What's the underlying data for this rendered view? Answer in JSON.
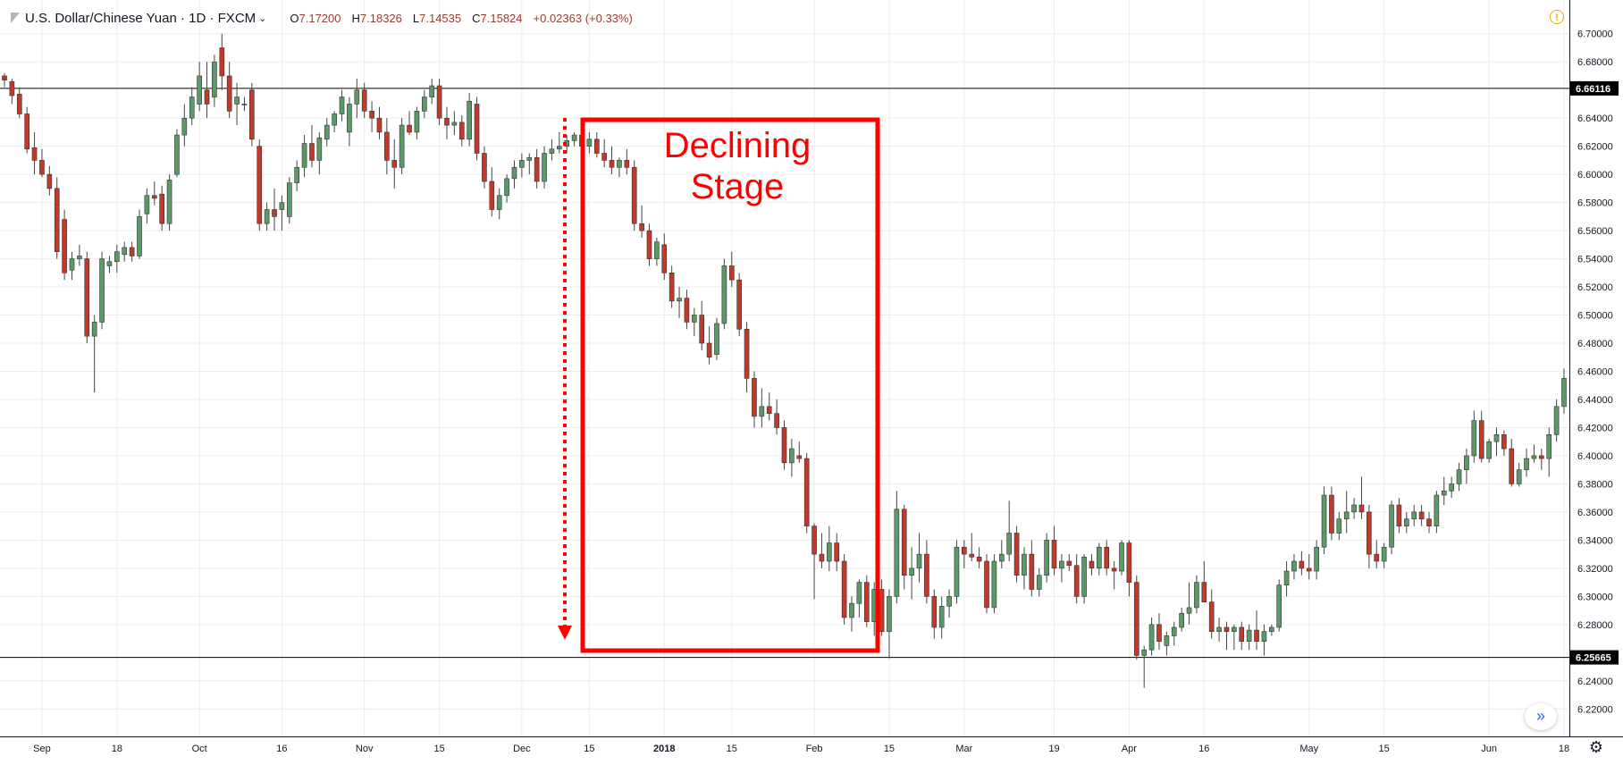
{
  "header": {
    "title": "U.S. Dollar/Chinese Yuan · 1D · FXCM",
    "ohlc": [
      {
        "label": "O",
        "value": "7.17200"
      },
      {
        "label": "H",
        "value": "7.18326"
      },
      {
        "label": "L",
        "value": "7.14535"
      },
      {
        "label": "C",
        "value": "7.15824"
      }
    ],
    "change": "+0.02363 (+0.33%)"
  },
  "annotation": {
    "text_line1": "Declining",
    "text_line2": "Stage"
  },
  "colors": {
    "up": "#5b9a68",
    "down": "#c0392b",
    "annotation": "#ff0000",
    "grid": "#ececec"
  },
  "icons": {
    "alert": "alert-circle-icon",
    "settings": "gear-icon",
    "scroll": "double-chevron-right-icon"
  },
  "chart_data": {
    "type": "candlestick",
    "ylim": [
      6.21,
      6.71
    ],
    "y_ticks": [
      "6.70000",
      "6.68000",
      "6.64000",
      "6.62000",
      "6.60000",
      "6.58000",
      "6.56000",
      "6.54000",
      "6.52000",
      "6.50000",
      "6.48000",
      "6.46000",
      "6.44000",
      "6.42000",
      "6.40000",
      "6.38000",
      "6.36000",
      "6.34000",
      "6.32000",
      "6.30000",
      "6.28000",
      "6.24000",
      "6.22000"
    ],
    "x_ticks": [
      "Sep",
      "18",
      "Oct",
      "16",
      "Nov",
      "15",
      "Dec",
      "15",
      "2018",
      "15",
      "Feb",
      "15",
      "Mar",
      "19",
      "Apr",
      "16",
      "May",
      "15",
      "Jun",
      "18"
    ],
    "horizontal_lines": [
      {
        "value": 6.66116,
        "label": "6.66116"
      },
      {
        "value": 6.25665,
        "label": "6.25665"
      }
    ],
    "candles": [
      [
        6.67,
        6.672,
        6.662,
        6.667
      ],
      [
        6.666,
        6.668,
        6.65,
        6.656
      ],
      [
        6.657,
        6.662,
        6.64,
        6.643
      ],
      [
        6.643,
        6.648,
        6.615,
        6.618
      ],
      [
        6.619,
        6.63,
        6.6,
        6.61
      ],
      [
        6.61,
        6.618,
        6.598,
        6.6
      ],
      [
        6.6,
        6.606,
        6.585,
        6.59
      ],
      [
        6.59,
        6.598,
        6.54,
        6.545
      ],
      [
        6.568,
        6.575,
        6.525,
        6.53
      ],
      [
        6.532,
        6.545,
        6.525,
        6.54
      ],
      [
        6.54,
        6.55,
        6.535,
        6.542
      ],
      [
        6.54,
        6.545,
        6.48,
        6.485
      ],
      [
        6.485,
        6.5,
        6.445,
        6.495
      ],
      [
        6.495,
        6.545,
        6.49,
        6.54
      ],
      [
        6.535,
        6.542,
        6.53,
        6.538
      ],
      [
        6.538,
        6.55,
        6.53,
        6.545
      ],
      [
        6.543,
        6.552,
        6.538,
        6.548
      ],
      [
        6.548,
        6.552,
        6.538,
        6.542
      ],
      [
        6.542,
        6.575,
        6.54,
        6.57
      ],
      [
        6.572,
        6.59,
        6.565,
        6.585
      ],
      [
        6.585,
        6.595,
        6.578,
        6.583
      ],
      [
        6.586,
        6.592,
        6.56,
        6.565
      ],
      [
        6.565,
        6.6,
        6.56,
        6.596
      ],
      [
        6.6,
        6.632,
        6.598,
        6.628
      ],
      [
        6.628,
        6.65,
        6.62,
        6.64
      ],
      [
        6.64,
        6.662,
        6.635,
        6.655
      ],
      [
        6.65,
        6.68,
        6.645,
        6.67
      ],
      [
        6.66,
        6.68,
        6.64,
        6.65
      ],
      [
        6.655,
        6.685,
        6.648,
        6.68
      ],
      [
        6.69,
        6.7,
        6.66,
        6.67
      ],
      [
        6.67,
        6.68,
        6.64,
        6.645
      ],
      [
        6.65,
        6.665,
        6.635,
        6.655
      ],
      [
        6.65,
        6.655,
        6.645,
        6.65
      ],
      [
        6.66,
        6.665,
        6.62,
        6.625
      ],
      [
        6.62,
        6.625,
        6.56,
        6.565
      ],
      [
        6.565,
        6.58,
        6.56,
        6.575
      ],
      [
        6.575,
        6.59,
        6.56,
        6.57
      ],
      [
        6.575,
        6.585,
        6.56,
        6.58
      ],
      [
        6.57,
        6.598,
        6.565,
        6.594
      ],
      [
        6.594,
        6.61,
        6.588,
        6.605
      ],
      [
        6.605,
        6.628,
        6.598,
        6.622
      ],
      [
        6.622,
        6.635,
        6.605,
        6.61
      ],
      [
        6.61,
        6.63,
        6.6,
        6.626
      ],
      [
        6.625,
        6.64,
        6.62,
        6.635
      ],
      [
        6.635,
        6.645,
        6.63,
        6.643
      ],
      [
        6.643,
        6.66,
        6.638,
        6.655
      ],
      [
        6.63,
        6.655,
        6.62,
        6.65
      ],
      [
        6.65,
        6.668,
        6.64,
        6.66
      ],
      [
        6.66,
        6.665,
        6.64,
        6.645
      ],
      [
        6.645,
        6.652,
        6.63,
        6.64
      ],
      [
        6.64,
        6.648,
        6.625,
        6.63
      ],
      [
        6.63,
        6.64,
        6.6,
        6.61
      ],
      [
        6.61,
        6.625,
        6.59,
        6.605
      ],
      [
        6.605,
        6.64,
        6.6,
        6.635
      ],
      [
        6.635,
        6.645,
        6.628,
        6.63
      ],
      [
        6.63,
        6.648,
        6.625,
        6.645
      ],
      [
        6.645,
        6.66,
        6.64,
        6.655
      ],
      [
        6.655,
        6.668,
        6.65,
        6.663
      ],
      [
        6.663,
        6.668,
        6.635,
        6.64
      ],
      [
        6.64,
        6.648,
        6.625,
        6.635
      ],
      [
        6.635,
        6.645,
        6.628,
        6.637
      ],
      [
        6.637,
        6.642,
        6.62,
        6.625
      ],
      [
        6.625,
        6.658,
        6.62,
        6.652
      ],
      [
        6.65,
        6.655,
        6.61,
        6.615
      ],
      [
        6.615,
        6.62,
        6.59,
        6.595
      ],
      [
        6.595,
        6.605,
        6.57,
        6.575
      ],
      [
        6.575,
        6.59,
        6.568,
        6.585
      ],
      [
        6.585,
        6.6,
        6.58,
        6.597
      ],
      [
        6.597,
        6.61,
        6.59,
        6.605
      ],
      [
        6.605,
        6.615,
        6.598,
        6.61
      ],
      [
        6.61,
        6.615,
        6.6,
        6.612
      ],
      [
        6.612,
        6.618,
        6.59,
        6.595
      ],
      [
        6.595,
        6.62,
        6.59,
        6.615
      ],
      [
        6.615,
        6.625,
        6.61,
        6.618
      ],
      [
        6.618,
        6.63,
        6.615,
        6.62
      ],
      [
        6.62,
        6.628,
        6.615,
        6.624
      ],
      [
        6.624,
        6.63,
        6.62,
        6.628
      ],
      [
        6.628,
        6.636,
        6.615,
        6.62
      ],
      [
        6.62,
        6.63,
        6.615,
        6.625
      ],
      [
        6.625,
        6.63,
        6.612,
        6.615
      ],
      [
        6.615,
        6.625,
        6.605,
        6.61
      ],
      [
        6.61,
        6.62,
        6.6,
        6.605
      ],
      [
        6.605,
        6.612,
        6.598,
        6.61
      ],
      [
        6.61,
        6.618,
        6.6,
        6.605
      ],
      [
        6.605,
        6.61,
        6.56,
        6.565
      ],
      [
        6.565,
        6.578,
        6.555,
        6.56
      ],
      [
        6.56,
        6.565,
        6.535,
        6.54
      ],
      [
        6.54,
        6.555,
        6.535,
        6.552
      ],
      [
        6.55,
        6.558,
        6.525,
        6.53
      ],
      [
        6.53,
        6.535,
        6.505,
        6.51
      ],
      [
        6.51,
        6.52,
        6.498,
        6.512
      ],
      [
        6.512,
        6.518,
        6.49,
        6.495
      ],
      [
        6.495,
        6.505,
        6.485,
        6.5
      ],
      [
        6.5,
        6.51,
        6.475,
        6.48
      ],
      [
        6.48,
        6.492,
        6.465,
        6.47
      ],
      [
        6.472,
        6.498,
        6.468,
        6.494
      ],
      [
        6.494,
        6.54,
        6.49,
        6.535
      ],
      [
        6.535,
        6.545,
        6.52,
        6.525
      ],
      [
        6.525,
        6.53,
        6.485,
        6.49
      ],
      [
        6.49,
        6.495,
        6.445,
        6.455
      ],
      [
        6.455,
        6.46,
        6.42,
        6.428
      ],
      [
        6.428,
        6.448,
        6.42,
        6.435
      ],
      [
        6.435,
        6.445,
        6.425,
        6.43
      ],
      [
        6.43,
        6.44,
        6.415,
        6.42
      ],
      [
        6.42,
        6.425,
        6.39,
        6.395
      ],
      [
        6.395,
        6.412,
        6.385,
        6.405
      ],
      [
        6.4,
        6.41,
        6.395,
        6.398
      ],
      [
        6.398,
        6.402,
        6.345,
        6.35
      ],
      [
        6.35,
        6.352,
        6.298,
        6.33
      ],
      [
        6.33,
        6.345,
        6.32,
        6.325
      ],
      [
        6.325,
        6.35,
        6.318,
        6.338
      ],
      [
        6.338,
        6.345,
        6.318,
        6.325
      ],
      [
        6.325,
        6.33,
        6.28,
        6.285
      ],
      [
        6.285,
        6.3,
        6.275,
        6.295
      ],
      [
        6.295,
        6.312,
        6.285,
        6.31
      ],
      [
        6.31,
        6.315,
        6.278,
        6.282
      ],
      [
        6.282,
        6.31,
        6.272,
        6.305
      ],
      [
        6.305,
        6.312,
        6.272,
        6.275
      ],
      [
        6.275,
        6.305,
        6.256,
        6.3
      ],
      [
        6.3,
        6.375,
        6.295,
        6.362
      ],
      [
        6.362,
        6.365,
        6.305,
        6.315
      ],
      [
        6.315,
        6.335,
        6.298,
        6.32
      ],
      [
        6.32,
        6.345,
        6.31,
        6.33
      ],
      [
        6.33,
        6.34,
        6.295,
        6.3
      ],
      [
        6.3,
        6.305,
        6.27,
        6.278
      ],
      [
        6.278,
        6.3,
        6.27,
        6.293
      ],
      [
        6.293,
        6.305,
        6.285,
        6.3
      ],
      [
        6.3,
        6.34,
        6.295,
        6.335
      ],
      [
        6.335,
        6.34,
        6.32,
        6.33
      ],
      [
        6.33,
        6.345,
        6.325,
        6.328
      ],
      [
        6.328,
        6.335,
        6.32,
        6.325
      ],
      [
        6.325,
        6.33,
        6.288,
        6.292
      ],
      [
        6.292,
        6.33,
        6.288,
        6.325
      ],
      [
        6.325,
        6.34,
        6.32,
        6.33
      ],
      [
        6.33,
        6.368,
        6.325,
        6.345
      ],
      [
        6.345,
        6.35,
        6.31,
        6.315
      ],
      [
        6.315,
        6.335,
        6.305,
        6.33
      ],
      [
        6.33,
        6.34,
        6.3,
        6.305
      ],
      [
        6.305,
        6.32,
        6.3,
        6.315
      ],
      [
        6.315,
        6.345,
        6.31,
        6.34
      ],
      [
        6.34,
        6.35,
        6.315,
        6.32
      ],
      [
        6.32,
        6.33,
        6.31,
        6.325
      ],
      [
        6.325,
        6.33,
        6.318,
        6.322
      ],
      [
        6.322,
        6.33,
        6.295,
        6.3
      ],
      [
        6.3,
        6.33,
        6.295,
        6.328
      ],
      [
        6.325,
        6.33,
        6.315,
        6.32
      ],
      [
        6.32,
        6.338,
        6.315,
        6.335
      ],
      [
        6.335,
        6.34,
        6.315,
        6.32
      ],
      [
        6.32,
        6.325,
        6.305,
        6.318
      ],
      [
        6.318,
        6.34,
        6.315,
        6.338
      ],
      [
        6.338,
        6.34,
        6.3,
        6.31
      ],
      [
        6.31,
        6.315,
        6.255,
        6.258
      ],
      [
        6.258,
        6.265,
        6.235,
        6.262
      ],
      [
        6.262,
        6.285,
        6.258,
        6.28
      ],
      [
        6.28,
        6.288,
        6.262,
        6.268
      ],
      [
        6.265,
        6.275,
        6.258,
        6.272
      ],
      [
        6.272,
        6.282,
        6.265,
        6.278
      ],
      [
        6.278,
        6.292,
        6.275,
        6.288
      ],
      [
        6.288,
        6.31,
        6.28,
        6.292
      ],
      [
        6.292,
        6.315,
        6.288,
        6.31
      ],
      [
        6.31,
        6.325,
        6.3,
        6.296
      ],
      [
        6.296,
        6.305,
        6.27,
        6.275
      ],
      [
        6.275,
        6.285,
        6.268,
        6.278
      ],
      [
        6.278,
        6.282,
        6.262,
        6.275
      ],
      [
        6.275,
        6.28,
        6.262,
        6.278
      ],
      [
        6.278,
        6.282,
        6.262,
        6.268
      ],
      [
        6.268,
        6.28,
        6.262,
        6.276
      ],
      [
        6.276,
        6.29,
        6.262,
        6.268
      ],
      [
        6.268,
        6.28,
        6.258,
        6.275
      ],
      [
        6.275,
        6.28,
        6.272,
        6.278
      ],
      [
        6.278,
        6.312,
        6.275,
        6.308
      ],
      [
        6.308,
        6.325,
        6.3,
        6.318
      ],
      [
        6.318,
        6.33,
        6.312,
        6.325
      ],
      [
        6.325,
        6.332,
        6.315,
        6.32
      ],
      [
        6.32,
        6.33,
        6.312,
        6.318
      ],
      [
        6.318,
        6.34,
        6.312,
        6.335
      ],
      [
        6.335,
        6.378,
        6.33,
        6.372
      ],
      [
        6.372,
        6.378,
        6.34,
        6.345
      ],
      [
        6.345,
        6.36,
        6.34,
        6.355
      ],
      [
        6.355,
        6.375,
        6.345,
        6.36
      ],
      [
        6.36,
        6.37,
        6.355,
        6.365
      ],
      [
        6.365,
        6.385,
        6.355,
        6.36
      ],
      [
        6.36,
        6.365,
        6.32,
        6.33
      ],
      [
        6.33,
        6.34,
        6.32,
        6.325
      ],
      [
        6.325,
        6.338,
        6.32,
        6.335
      ],
      [
        6.335,
        6.368,
        6.33,
        6.365
      ],
      [
        6.365,
        6.37,
        6.345,
        6.35
      ],
      [
        6.35,
        6.36,
        6.345,
        6.355
      ],
      [
        6.355,
        6.365,
        6.35,
        6.36
      ],
      [
        6.36,
        6.365,
        6.35,
        6.355
      ],
      [
        6.355,
        6.36,
        6.345,
        6.35
      ],
      [
        6.35,
        6.375,
        6.345,
        6.372
      ],
      [
        6.372,
        6.385,
        6.365,
        6.375
      ],
      [
        6.375,
        6.385,
        6.37,
        6.38
      ],
      [
        6.38,
        6.395,
        6.375,
        6.39
      ],
      [
        6.39,
        6.405,
        6.38,
        6.4
      ],
      [
        6.4,
        6.432,
        6.395,
        6.425
      ],
      [
        6.425,
        6.432,
        6.395,
        6.398
      ],
      [
        6.398,
        6.412,
        6.395,
        6.41
      ],
      [
        6.41,
        6.42,
        6.4,
        6.415
      ],
      [
        6.415,
        6.418,
        6.4,
        6.405
      ],
      [
        6.405,
        6.412,
        6.378,
        6.38
      ],
      [
        6.38,
        6.395,
        6.378,
        6.39
      ],
      [
        6.39,
        6.405,
        6.385,
        6.398
      ],
      [
        6.398,
        6.408,
        6.395,
        6.4
      ],
      [
        6.4,
        6.405,
        6.39,
        6.398
      ],
      [
        6.398,
        6.42,
        6.385,
        6.415
      ],
      [
        6.415,
        6.44,
        6.41,
        6.435
      ],
      [
        6.435,
        6.462,
        6.43,
        6.455
      ]
    ]
  }
}
